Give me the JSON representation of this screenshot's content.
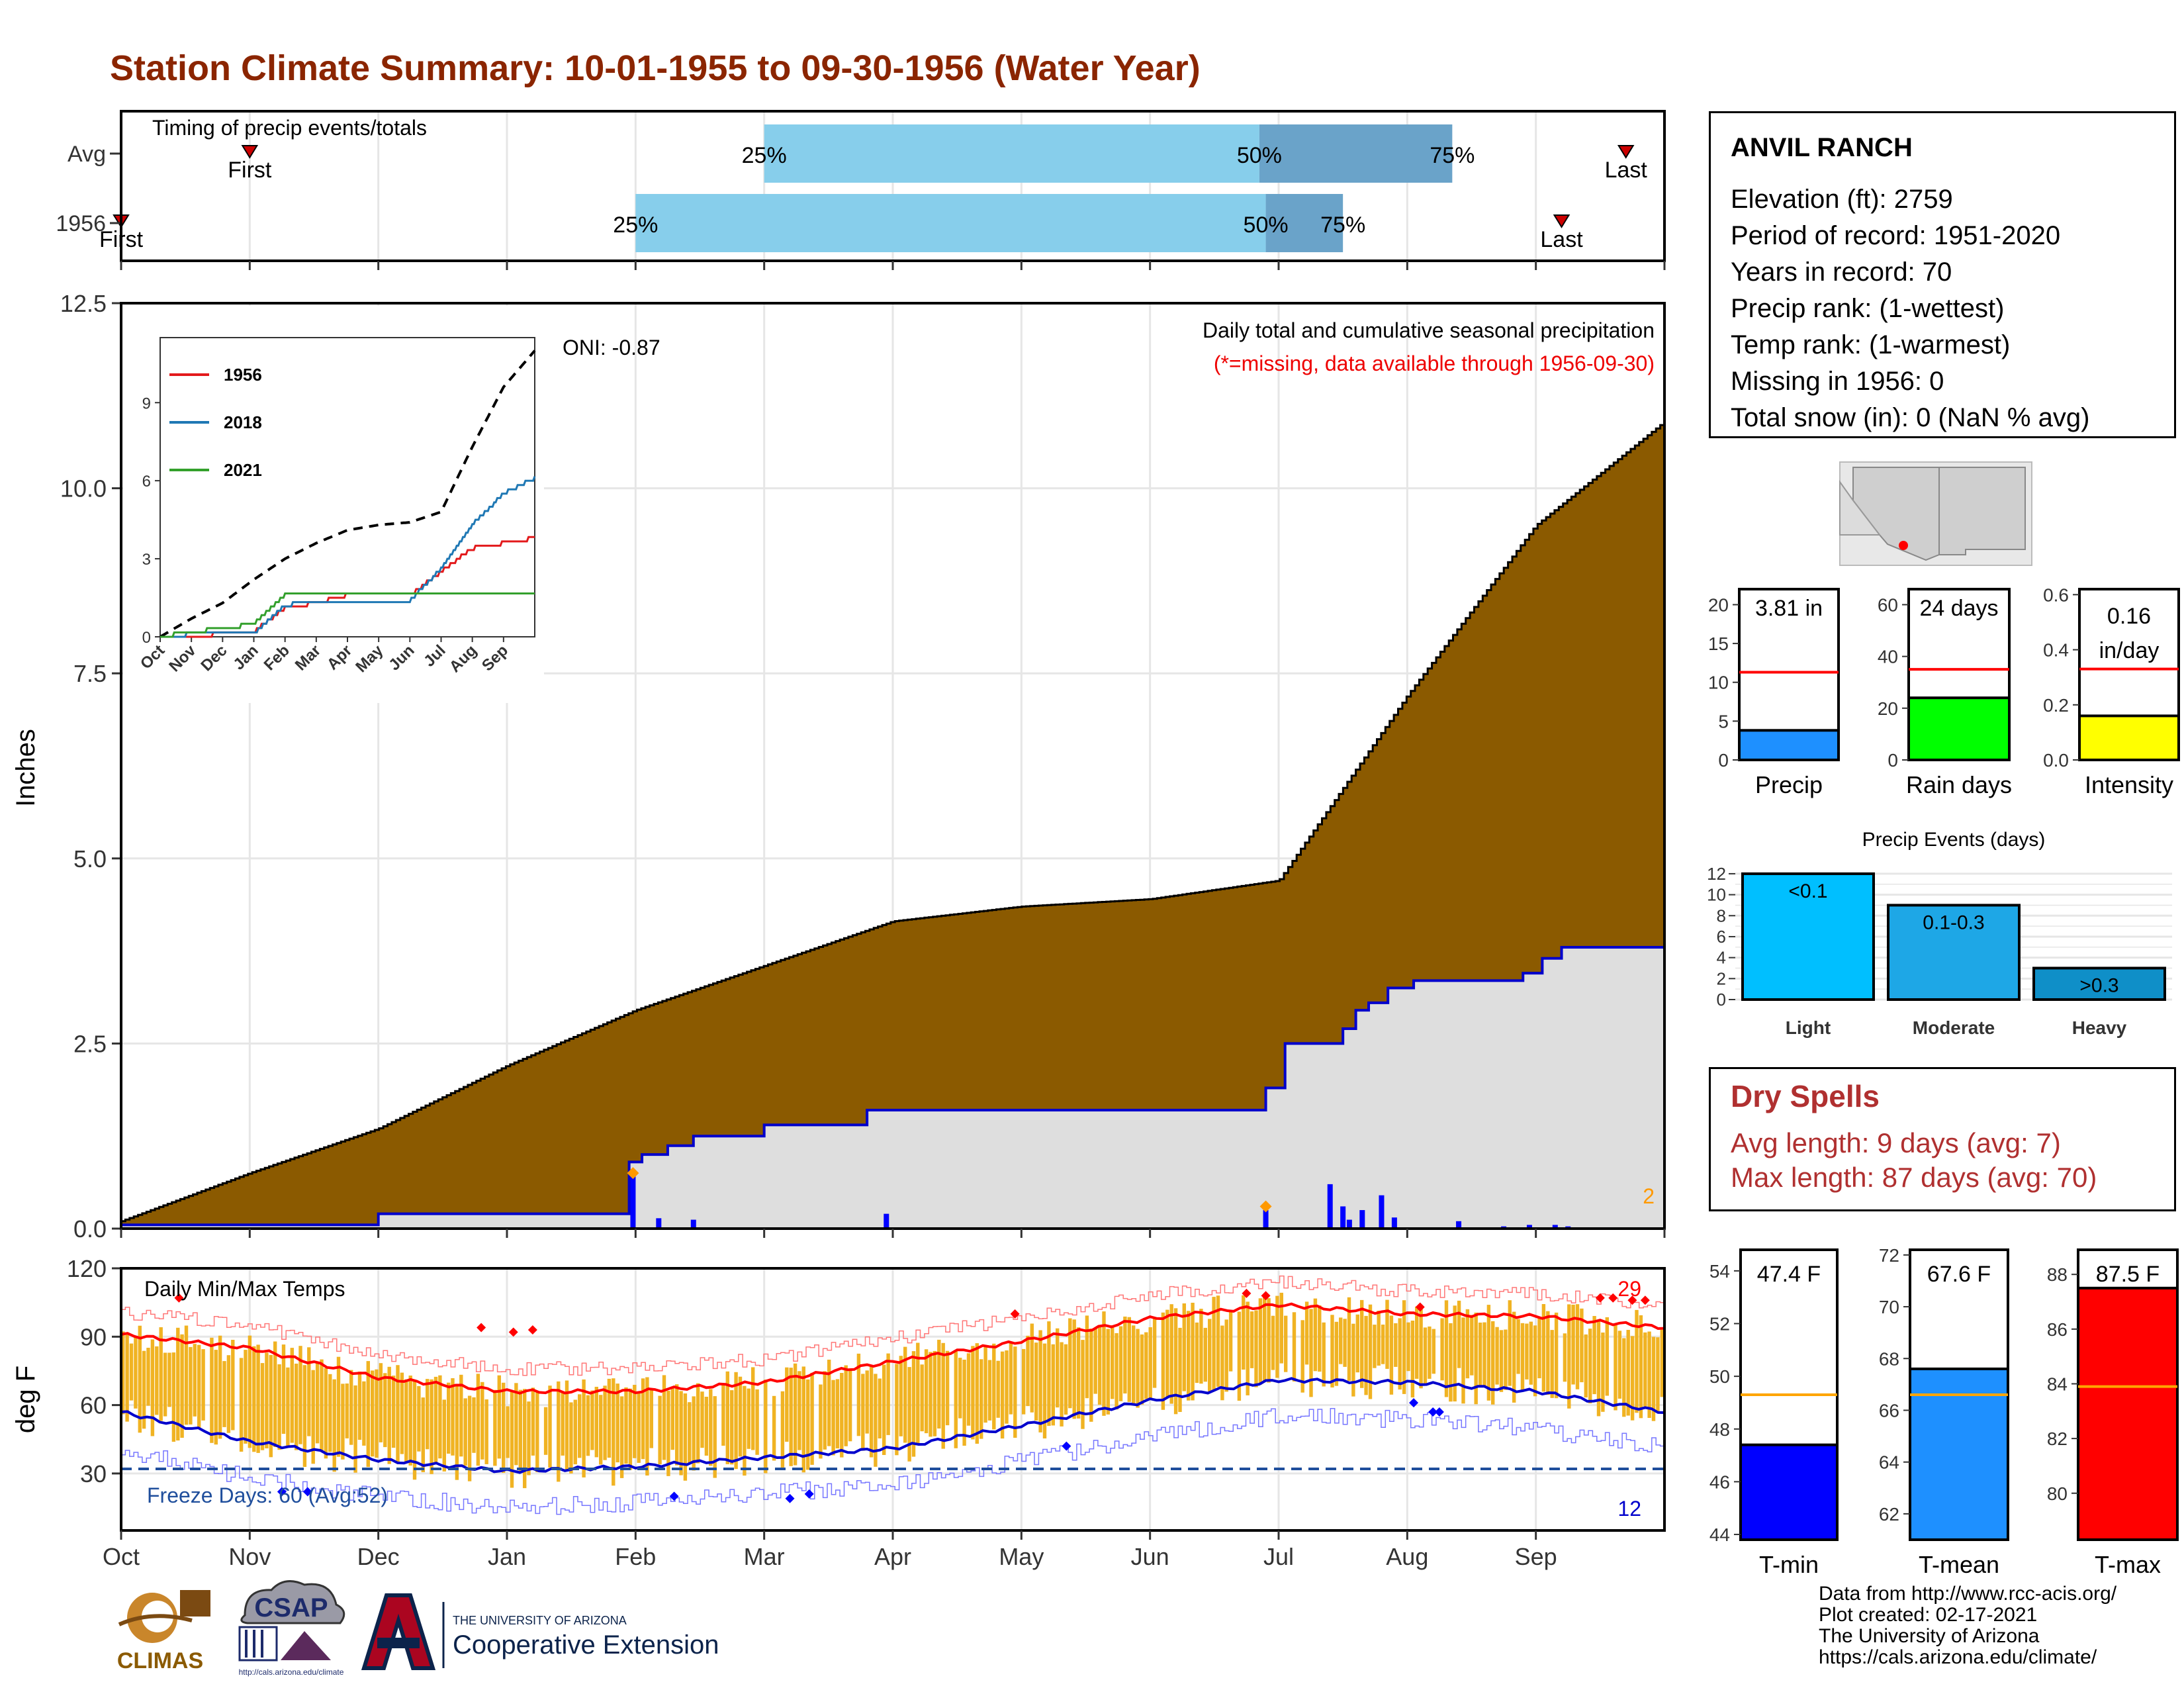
{
  "title": "Station Climate Summary: 10-01-1955 to 09-30-1956 (Water Year)",
  "months": [
    "Oct",
    "Nov",
    "Dec",
    "Jan",
    "Feb",
    "Mar",
    "Apr",
    "May",
    "Jun",
    "Jul",
    "Aug",
    "Sep"
  ],
  "timing_panel": {
    "label": "Timing of precip events/totals",
    "rows": [
      "Avg",
      "1956"
    ],
    "avg": {
      "first_label": "First",
      "last_label": "Last",
      "p25": "25%",
      "p50": "50%",
      "p75": "75%"
    },
    "year": {
      "first_label": "First",
      "last_label": "Last",
      "p25": "25%",
      "p50": "50%",
      "p75": "75%"
    },
    "colors": {
      "light": "#87ceeb",
      "dark": "#6aa3c9",
      "marker": "#cc0000"
    }
  },
  "precip_panel": {
    "ylabel": "Inches",
    "subtitle": "Daily total and cumulative seasonal precipitation",
    "missing_note": "(*=missing, data available through 1956-09-30)",
    "oni": "ONI: -0.87",
    "count_label": "2",
    "y_ticks": [
      "0.0",
      "2.5",
      "5.0",
      "7.5",
      "10.0",
      "12.5"
    ],
    "colors": {
      "cumulative_avg": "#8b5a00",
      "year_fill": "#dedede",
      "year_line": "#0000cc",
      "daily": "#0000ff",
      "marker": "#ff9900"
    }
  },
  "inset": {
    "legend": [
      "1956",
      "2018",
      "2021"
    ],
    "legend_colors": [
      "#e31a1c",
      "#1f78b4",
      "#33a02c"
    ],
    "y_ticks": [
      "0",
      "3",
      "6",
      "9"
    ],
    "months": [
      "Oct",
      "Nov",
      "Dec",
      "Jan",
      "Feb",
      "Mar",
      "Apr",
      "May",
      "Jun",
      "Jul",
      "Aug",
      "Sep"
    ]
  },
  "temp_panel": {
    "ylabel": "deg F",
    "label": "Daily Min/Max Temps",
    "freeze_label": "Freeze Days: 60 (Avg:52)",
    "hot_count": "29",
    "cold_count": "12",
    "y_ticks": [
      "30",
      "60",
      "90",
      "120"
    ],
    "colors": {
      "bars": "#f0b323",
      "max_avg": "#ff0000",
      "min_avg": "#0000cc",
      "freeze_line": "#1f4e9c"
    }
  },
  "station": {
    "name": "ANVIL RANCH",
    "elevation": "Elevation (ft): 2759",
    "period": "Period of record: 1951-2020",
    "years": "Years in record: 70",
    "precip_rank": "Precip rank:  (1-wettest)",
    "temp_rank": "Temp rank:  (1-warmest)",
    "missing": "Missing in 1956: 0",
    "snow": "Total snow (in): 0 (NaN % avg)"
  },
  "summary_bars": [
    {
      "label": "Precip",
      "value_label": "3.81 in",
      "color": "#1e90ff",
      "ticks": [
        "0",
        "5",
        "10",
        "15",
        "20"
      ]
    },
    {
      "label": "Rain days",
      "value_label": "24 days",
      "color": "#00ff00",
      "ticks": [
        "0",
        "20",
        "40",
        "60"
      ]
    },
    {
      "label": "Intensity",
      "value_label": "0.16\nin/day",
      "value_line1": "0.16",
      "value_line2": "in/day",
      "color": "#ffff00",
      "ticks": [
        "0.0",
        "0.2",
        "0.4",
        "0.6"
      ]
    }
  ],
  "precip_events": {
    "title": "Precip Events (days)",
    "categories": [
      "Light",
      "Moderate",
      "Heavy"
    ],
    "bar_labels": [
      "<0.1",
      "0.1-0.3",
      ">0.3"
    ],
    "colors": [
      "#00bfff",
      "#1ea7e6",
      "#0f8fc8"
    ],
    "y_ticks": [
      "0",
      "2",
      "4",
      "6",
      "8",
      "10",
      "12"
    ]
  },
  "dry_spells": {
    "title": "Dry Spells",
    "avg": "Avg length: 9 days (avg: 7)",
    "max": "Max length: 87 days (avg: 70)"
  },
  "temp_bars": [
    {
      "label": "T-min",
      "value_label": "47.4 F",
      "color": "#0000ff",
      "ticks": [
        "44",
        "46",
        "48",
        "50",
        "52",
        "54"
      ]
    },
    {
      "label": "T-mean",
      "value_label": "67.6 F",
      "color": "#1e90ff",
      "ticks": [
        "62",
        "64",
        "66",
        "68",
        "70",
        "72"
      ]
    },
    {
      "label": "T-max",
      "value_label": "87.5 F",
      "color": "#ff0000",
      "ticks": [
        "80",
        "82",
        "84",
        "86",
        "88"
      ]
    }
  ],
  "credits": {
    "line1": "Data from http://www.rcc-acis.org/",
    "line2": "Plot created: 02-17-2021",
    "line3": "The University of Arizona",
    "line4": "https://cals.arizona.edu/climate/"
  },
  "logos": {
    "climas": "CLIMAS",
    "csap": "CSAP",
    "csap_url": "http://cals.arizona.edu/climate",
    "ua_small": "THE UNIVERSITY OF ARIZONA",
    "ua_big": "Cooperative Extension"
  },
  "chart_data": [
    {
      "type": "bar",
      "name": "timing",
      "categories": [
        "Avg",
        "1956"
      ],
      "series": [
        {
          "name": "First",
          "values": [
            1.0,
            0.0
          ]
        },
        {
          "name": "25%",
          "values": [
            5.0,
            4.0
          ]
        },
        {
          "name": "50%",
          "values": [
            8.85,
            8.9
          ]
        },
        {
          "name": "75%",
          "values": [
            10.35,
            9.5
          ]
        },
        {
          "name": "Last",
          "values": [
            11.7,
            11.2
          ]
        }
      ]
    },
    {
      "type": "area",
      "name": "cumulative precipitation",
      "x": [
        "Oct",
        "Nov",
        "Dec",
        "Jan",
        "Feb",
        "Mar",
        "Apr",
        "May",
        "Jun",
        "Jul",
        "Aug",
        "Sep",
        "Sep-30"
      ],
      "series": [
        {
          "name": "Avg cumulative",
          "values": [
            0.1,
            0.75,
            1.35,
            2.2,
            2.95,
            3.55,
            4.15,
            4.35,
            4.45,
            4.7,
            7.2,
            9.5,
            10.9
          ]
        },
        {
          "name": "1956 cumulative",
          "values": [
            0.05,
            0.05,
            0.2,
            0.2,
            1.0,
            1.25,
            1.6,
            1.6,
            1.6,
            2.5,
            3.45,
            3.6,
            3.81
          ]
        }
      ],
      "ylim": [
        0,
        12.5
      ]
    },
    {
      "type": "line",
      "name": "inset cumulative comparison",
      "x": [
        "Oct",
        "Nov",
        "Dec",
        "Jan",
        "Feb",
        "Mar",
        "Apr",
        "May",
        "Jun",
        "Jul",
        "Aug",
        "Sep",
        "Sep-30"
      ],
      "series": [
        {
          "name": "Avg",
          "values": [
            0,
            0.7,
            1.3,
            2.2,
            3.0,
            3.6,
            4.1,
            4.3,
            4.4,
            4.8,
            7.3,
            9.6,
            11.0
          ]
        },
        {
          "name": "1956",
          "values": [
            0,
            0.05,
            0.1,
            0.2,
            1.1,
            1.3,
            1.6,
            1.6,
            1.6,
            2.5,
            3.4,
            3.6,
            3.8
          ]
        },
        {
          "name": "2018",
          "values": [
            0,
            0.1,
            0.1,
            0.1,
            1.2,
            1.4,
            1.4,
            1.4,
            1.4,
            2.6,
            4.3,
            5.5,
            6.1
          ]
        },
        {
          "name": "2021",
          "values": [
            0,
            0.2,
            0.3,
            0.5,
            1.6,
            1.6,
            1.6,
            1.6,
            1.6,
            1.6,
            1.6,
            1.6,
            1.6
          ]
        }
      ],
      "ylim": [
        0,
        11.5
      ]
    },
    {
      "type": "line",
      "name": "daily temperatures",
      "x": [
        "Oct",
        "Nov",
        "Dec",
        "Jan",
        "Feb",
        "Mar",
        "Apr",
        "May",
        "Jun",
        "Jul",
        "Aug",
        "Sep",
        "Sep-30"
      ],
      "series": [
        {
          "name": "Avg max",
          "values": [
            91,
            85,
            72,
            66,
            66,
            70,
            79,
            88,
            98,
            104,
            100,
            99,
            94
          ]
        },
        {
          "name": "Avg min",
          "values": [
            57,
            44,
            36,
            31,
            33,
            37,
            41,
            51,
            62,
            71,
            70,
            66,
            57
          ]
        }
      ],
      "ylim": [
        5,
        120
      ]
    },
    {
      "type": "bar",
      "name": "Precip",
      "categories": [
        "1956",
        "Avg"
      ],
      "values": [
        3.81,
        11.3
      ],
      "ylim": [
        0,
        22
      ]
    },
    {
      "type": "bar",
      "name": "Rain days",
      "categories": [
        "1956",
        "Avg"
      ],
      "values": [
        24,
        35
      ],
      "ylim": [
        0,
        66
      ]
    },
    {
      "type": "bar",
      "name": "Intensity",
      "categories": [
        "1956",
        "Avg"
      ],
      "values": [
        0.16,
        0.33
      ],
      "ylim": [
        0,
        0.62
      ]
    },
    {
      "type": "bar",
      "name": "Precip Events (days)",
      "categories": [
        "Light",
        "Moderate",
        "Heavy"
      ],
      "values": [
        12,
        9,
        3
      ],
      "ylim": [
        0,
        12.5
      ]
    },
    {
      "type": "bar",
      "name": "T-min",
      "categories": [
        "1956",
        "Avg"
      ],
      "values": [
        47.4,
        49.3
      ],
      "ylim": [
        43.8,
        54.8
      ]
    },
    {
      "type": "bar",
      "name": "T-mean",
      "categories": [
        "1956",
        "Avg"
      ],
      "values": [
        67.6,
        66.6
      ],
      "ylim": [
        61.0,
        72.2
      ]
    },
    {
      "type": "bar",
      "name": "T-max",
      "categories": [
        "1956",
        "Avg"
      ],
      "values": [
        87.5,
        83.9
      ],
      "ylim": [
        78.3,
        88.9
      ]
    }
  ]
}
